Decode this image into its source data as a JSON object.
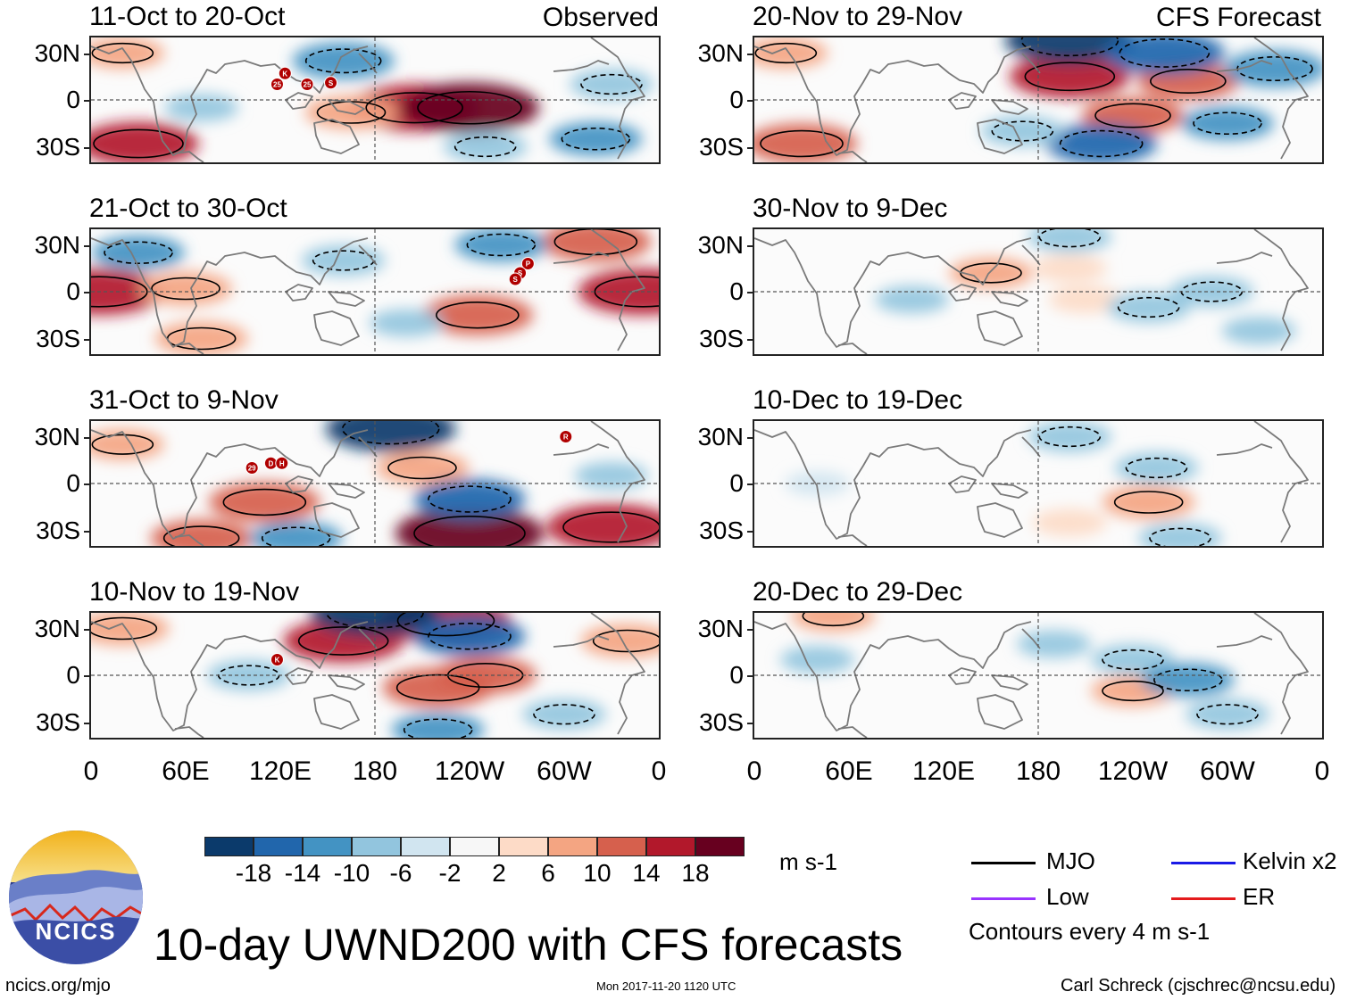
{
  "chart_data": {
    "type": "heatmap",
    "title": "10-day UWND200 with CFS forecasts",
    "variable": "UWND200",
    "units": "m s-1",
    "column_labels": {
      "observed": "Observed",
      "forecast": "CFS Forecast"
    },
    "y_ticks": [
      "30N",
      "0",
      "30S"
    ],
    "x_ticks": [
      "0",
      "60E",
      "120E",
      "180",
      "120W",
      "60W",
      "0"
    ],
    "lat_range": [
      -40,
      40
    ],
    "lon_range": [
      0,
      360
    ],
    "panels": [
      {
        "id": "obs1",
        "period": "11-Oct to 20-Oct",
        "source": "Observed",
        "storms": [
          {
            "label": "K",
            "lon": 123,
            "lat": 17
          },
          {
            "label": "25",
            "lon": 118,
            "lat": 10
          },
          {
            "label": "25",
            "lon": 137,
            "lat": 10
          },
          {
            "label": "S",
            "lon": 152,
            "lat": 11
          }
        ],
        "anomalies": [
          {
            "lon": 205,
            "lat": -5,
            "value": 18
          },
          {
            "lon": 240,
            "lat": -5,
            "value": 20
          },
          {
            "lon": 165,
            "lat": -8,
            "value": 10
          },
          {
            "lon": 30,
            "lat": -28,
            "value": 16
          },
          {
            "lon": 20,
            "lat": 30,
            "value": 8
          },
          {
            "lon": 160,
            "lat": 25,
            "value": -12
          },
          {
            "lon": 70,
            "lat": -5,
            "value": -6
          },
          {
            "lon": 330,
            "lat": 10,
            "value": -8
          },
          {
            "lon": 320,
            "lat": -25,
            "value": -10
          },
          {
            "lon": 250,
            "lat": -30,
            "value": -8
          }
        ]
      },
      {
        "id": "obs2",
        "period": "21-Oct to 30-Oct",
        "source": "Observed",
        "storms": [
          {
            "label": "P",
            "lon": 277,
            "lat": 18
          },
          {
            "label": "S",
            "lon": 272,
            "lat": 12
          },
          {
            "label": "S",
            "lon": 269,
            "lat": 8
          }
        ],
        "anomalies": [
          {
            "lon": 5,
            "lat": 0,
            "value": 18
          },
          {
            "lon": 350,
            "lat": 0,
            "value": 18
          },
          {
            "lon": 245,
            "lat": -15,
            "value": 14
          },
          {
            "lon": 60,
            "lat": 2,
            "value": 10
          },
          {
            "lon": 320,
            "lat": 32,
            "value": 14
          },
          {
            "lon": 30,
            "lat": 25,
            "value": -10
          },
          {
            "lon": 160,
            "lat": 20,
            "value": -8
          },
          {
            "lon": 260,
            "lat": 30,
            "value": -10
          },
          {
            "lon": 200,
            "lat": -20,
            "value": -6
          },
          {
            "lon": 70,
            "lat": -30,
            "value": 10
          }
        ]
      },
      {
        "id": "obs3",
        "period": "31-Oct to 9-Nov",
        "source": "Observed",
        "storms": [
          {
            "label": "29",
            "lon": 102,
            "lat": 10
          },
          {
            "label": "D",
            "lon": 114,
            "lat": 13
          },
          {
            "label": "H",
            "lon": 121,
            "lat": 13
          },
          {
            "label": "R",
            "lon": 301,
            "lat": 30
          }
        ],
        "anomalies": [
          {
            "lon": 240,
            "lat": -32,
            "value": 22
          },
          {
            "lon": 330,
            "lat": -28,
            "value": 18
          },
          {
            "lon": 110,
            "lat": -12,
            "value": 14
          },
          {
            "lon": 70,
            "lat": -35,
            "value": 12
          },
          {
            "lon": 210,
            "lat": 10,
            "value": 10
          },
          {
            "lon": 190,
            "lat": 35,
            "value": -18
          },
          {
            "lon": 240,
            "lat": -10,
            "value": -14
          },
          {
            "lon": 130,
            "lat": -35,
            "value": -10
          },
          {
            "lon": 330,
            "lat": 5,
            "value": -6
          },
          {
            "lon": 20,
            "lat": 25,
            "value": 8
          }
        ]
      },
      {
        "id": "obs4",
        "period": "10-Nov to 19-Nov",
        "source": "Observed",
        "storms": [
          {
            "label": "K",
            "lon": 118,
            "lat": 10
          }
        ],
        "anomalies": [
          {
            "lon": 160,
            "lat": 22,
            "value": 16
          },
          {
            "lon": 225,
            "lat": 35,
            "value": 18
          },
          {
            "lon": 220,
            "lat": -8,
            "value": 14
          },
          {
            "lon": 250,
            "lat": 0,
            "value": 12
          },
          {
            "lon": 20,
            "lat": 30,
            "value": 10
          },
          {
            "lon": 340,
            "lat": 22,
            "value": 10
          },
          {
            "lon": 180,
            "lat": 40,
            "value": -18
          },
          {
            "lon": 240,
            "lat": 25,
            "value": -14
          },
          {
            "lon": 100,
            "lat": 0,
            "value": -8
          },
          {
            "lon": 220,
            "lat": -35,
            "value": -10
          },
          {
            "lon": 300,
            "lat": -25,
            "value": -8
          }
        ]
      },
      {
        "id": "fc1",
        "period": "20-Nov to 29-Nov",
        "source": "CFS Forecast",
        "storms": [],
        "anomalies": [
          {
            "lon": 200,
            "lat": 15,
            "value": 16
          },
          {
            "lon": 275,
            "lat": 12,
            "value": 12
          },
          {
            "lon": 240,
            "lat": -10,
            "value": 12
          },
          {
            "lon": 30,
            "lat": -28,
            "value": 14
          },
          {
            "lon": 20,
            "lat": 30,
            "value": 8
          },
          {
            "lon": 200,
            "lat": 38,
            "value": -18
          },
          {
            "lon": 260,
            "lat": 30,
            "value": -16
          },
          {
            "lon": 330,
            "lat": 20,
            "value": -12
          },
          {
            "lon": 220,
            "lat": -28,
            "value": -14
          },
          {
            "lon": 300,
            "lat": -15,
            "value": -10
          },
          {
            "lon": 170,
            "lat": -20,
            "value": -8
          }
        ]
      },
      {
        "id": "fc2",
        "period": "30-Nov to 9-Dec",
        "source": "CFS Forecast",
        "storms": [],
        "anomalies": [
          {
            "lon": 150,
            "lat": 12,
            "value": 8
          },
          {
            "lon": 200,
            "lat": 15,
            "value": 6
          },
          {
            "lon": 210,
            "lat": -5,
            "value": 6
          },
          {
            "lon": 200,
            "lat": 35,
            "value": -8
          },
          {
            "lon": 250,
            "lat": -10,
            "value": -8
          },
          {
            "lon": 290,
            "lat": 0,
            "value": -8
          },
          {
            "lon": 100,
            "lat": -5,
            "value": -6
          },
          {
            "lon": 320,
            "lat": -25,
            "value": -6
          }
        ]
      },
      {
        "id": "fc3",
        "period": "10-Dec to 19-Dec",
        "source": "CFS Forecast",
        "storms": [],
        "anomalies": [
          {
            "lon": 250,
            "lat": -12,
            "value": 10
          },
          {
            "lon": 200,
            "lat": 30,
            "value": -8
          },
          {
            "lon": 255,
            "lat": 10,
            "value": -8
          },
          {
            "lon": 270,
            "lat": -35,
            "value": -8
          },
          {
            "lon": 200,
            "lat": -25,
            "value": 6
          },
          {
            "lon": 40,
            "lat": 0,
            "value": -4
          }
        ]
      },
      {
        "id": "fc4",
        "period": "20-Dec to 29-Dec",
        "source": "CFS Forecast",
        "storms": [],
        "anomalies": [
          {
            "lon": 240,
            "lat": -10,
            "value": 8
          },
          {
            "lon": 50,
            "lat": 38,
            "value": 8
          },
          {
            "lon": 190,
            "lat": 20,
            "value": -6
          },
          {
            "lon": 240,
            "lat": 10,
            "value": -8
          },
          {
            "lon": 275,
            "lat": -3,
            "value": -10
          },
          {
            "lon": 300,
            "lat": -25,
            "value": -8
          },
          {
            "lon": 40,
            "lat": 10,
            "value": -6
          }
        ]
      }
    ],
    "colorbar": {
      "labels": [
        "-18",
        "-14",
        "-10",
        "-6",
        "-2",
        "2",
        "6",
        "10",
        "14",
        "18"
      ],
      "colors": [
        "#0b3a6b",
        "#2166ac",
        "#4393c3",
        "#92c5de",
        "#d1e5f0",
        "#f7f7f7",
        "#fddbc7",
        "#f4a582",
        "#d6604d",
        "#b2182b",
        "#67001f"
      ],
      "units": "m s-1"
    },
    "legend": [
      {
        "label": "MJO",
        "color": "#000000"
      },
      {
        "label": "Kelvin x2",
        "color": "#1a1ae6"
      },
      {
        "label": "Low",
        "color": "#9933ff"
      },
      {
        "label": "ER",
        "color": "#e41a1c"
      }
    ],
    "contour_note": "Contours every 4 m s-1"
  },
  "footer": {
    "site": "ncics.org/mjo",
    "timestamp": "Mon 2017-11-20 1120 UTC",
    "credit": "Carl Schreck (cjschrec@ncsu.edu)",
    "logo_text": "NCICS"
  }
}
